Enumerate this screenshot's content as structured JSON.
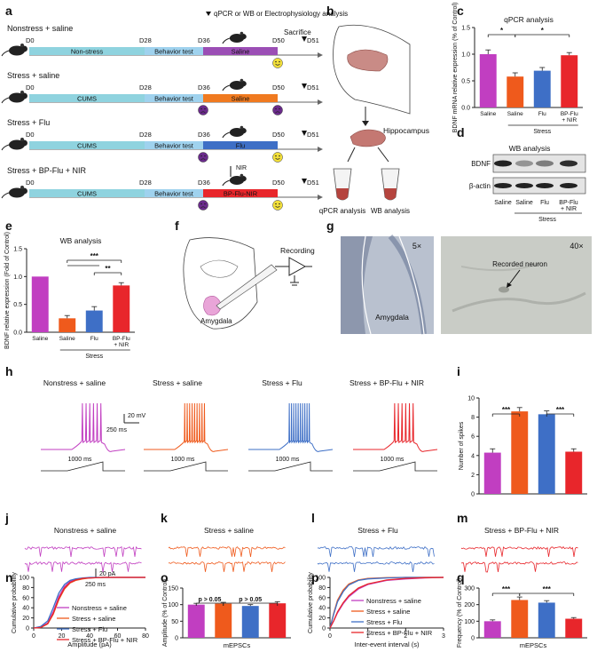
{
  "colors": {
    "saline": "#c13ec1",
    "stress": "#ef5a1c",
    "flu": "#3e6fc6",
    "nir": "#e8262b",
    "cyan": "#8fd3df",
    "lightblue": "#9fd2ee",
    "purple": "#9b4eb5",
    "orange": "#f07a20",
    "blue": "#3e6fc6",
    "red": "#e8262b",
    "smiley": "#f3e03a",
    "sad": "#6b2b8c"
  },
  "panel_letters": [
    "a",
    "b",
    "c",
    "d",
    "e",
    "f",
    "g",
    "h",
    "i",
    "j",
    "k",
    "l",
    "m",
    "n",
    "o",
    "p",
    "q"
  ],
  "panel_a": {
    "top_note": "qPCR or WB or Electrophysiology analysis",
    "sacrifice": "Sacrifice",
    "days": [
      "D0",
      "D28",
      "D36",
      "D50",
      "D51"
    ],
    "groups": [
      {
        "title": "Nonstress + saline",
        "seg1": "Non-stress",
        "seg2": "Behavior test",
        "seg3": "Saline",
        "d36_face": "none",
        "d50_face": "happy",
        "color_key": "saline"
      },
      {
        "title": "Stress + saline",
        "seg1": "CUMS",
        "seg2": "Behavior test",
        "seg3": "Saline",
        "d36_face": "sad",
        "d50_face": "sad",
        "color_key": "stress"
      },
      {
        "title": "Stress + Flu",
        "seg1": "CUMS",
        "seg2": "Behavior test",
        "seg3": "Flu",
        "d36_face": "sad",
        "d50_face": "happy",
        "color_key": "flu"
      },
      {
        "title": "Stress + BP-Flu + NIR",
        "seg1": "CUMS",
        "seg2": "Behavior test",
        "seg3": "BP-Flu-NIR",
        "d36_face": "sad",
        "d50_face": "happy",
        "color_key": "nir"
      }
    ],
    "nir_label": "NIR"
  },
  "panel_b": {
    "hippocampus": "Hippocampus",
    "qpcr": "qPCR analysis",
    "wb": "WB analysis"
  },
  "panel_c": {
    "chart_data": {
      "type": "bar",
      "title": "qPCR analysis",
      "ylabel": "BDNF mRNA relative expression (% of Control)",
      "ylim": [
        0,
        1.5
      ],
      "yticks": [
        "0.0",
        "0.5",
        "1.0",
        "1.5"
      ],
      "categories": [
        "Saline",
        "Saline",
        "Flu",
        "BP-Flu + NIR"
      ],
      "values": [
        1.0,
        0.58,
        0.69,
        0.98
      ],
      "errors": [
        0.08,
        0.07,
        0.06,
        0.05
      ],
      "group_label": "Stress",
      "sig": [
        "*",
        "*"
      ]
    }
  },
  "panel_d": {
    "title": "WB analysis",
    "rows": [
      "BDNF",
      "β-actin"
    ],
    "lanes": [
      "Saline",
      "Saline",
      "Flu",
      "BP-Flu + NIR"
    ],
    "group_label": "Stress"
  },
  "panel_e": {
    "chart_data": {
      "type": "bar",
      "title": "WB analysis",
      "ylabel": "BDNF relative expression (Fold of Control)",
      "ylim": [
        0,
        1.5
      ],
      "yticks": [
        "0.0",
        "0.5",
        "1.0",
        "1.5"
      ],
      "categories": [
        "Saline",
        "Saline",
        "Flu",
        "BP-Flu + NIR"
      ],
      "values": [
        1.0,
        0.25,
        0.39,
        0.84
      ],
      "errors": [
        0.0,
        0.05,
        0.07,
        0.05
      ],
      "group_label": "Stress",
      "sig": [
        "***",
        "**"
      ]
    }
  },
  "panel_f": {
    "recording": "Recording",
    "amygdala": "Amygdala"
  },
  "panel_g": {
    "left_mag": "5×",
    "right_mag": "40×",
    "amygdala": "Amygdala",
    "neuron": "Recorded neuron"
  },
  "panel_h": {
    "titles": [
      "Nonstress + saline",
      "Stress + saline",
      "Stress + Flu",
      "Stress + BP-Flu + NIR"
    ],
    "step": "1000 ms",
    "scale_v": "20 mV",
    "scale_t": "250 ms",
    "spikes": [
      6,
      9,
      10,
      6
    ]
  },
  "panel_i": {
    "chart_data": {
      "type": "bar",
      "ylabel": "Number of spikes",
      "ylim": [
        0,
        10
      ],
      "yticks": [
        "0",
        "2",
        "4",
        "6",
        "8",
        "10"
      ],
      "values": [
        4.3,
        8.6,
        8.3,
        4.4
      ],
      "errors": [
        0.4,
        0.4,
        0.35,
        0.3
      ],
      "sig": [
        "***",
        "***"
      ]
    }
  },
  "panel_jm": {
    "titles": [
      "Nonstress + saline",
      "Stress + saline",
      "Stress + Flu",
      "Stress + BP-Flu + NIR"
    ],
    "scale_a": "20 pA",
    "scale_t": "250 ms"
  },
  "panel_n": {
    "chart_data": {
      "type": "line",
      "xlabel": "Amplitude (pA)",
      "ylabel": "Cumulative probability",
      "xlim": [
        0,
        80
      ],
      "ylim": [
        0,
        100
      ],
      "xticks": [
        "0",
        "20",
        "40",
        "60",
        "80"
      ],
      "yticks": [
        "0",
        "20",
        "40",
        "60",
        "80",
        "100"
      ],
      "x": [
        0,
        5,
        10,
        14,
        18,
        22,
        26,
        30,
        35,
        40,
        50,
        60,
        80
      ],
      "series": [
        {
          "name": "Nonstress + saline",
          "values": [
            0,
            2,
            10,
            32,
            62,
            82,
            92,
            96,
            98,
            99,
            100,
            100,
            100
          ]
        },
        {
          "name": "Stress + saline",
          "values": [
            0,
            1,
            8,
            27,
            56,
            77,
            89,
            94,
            97,
            99,
            100,
            100,
            100
          ]
        },
        {
          "name": "Stress + Flu",
          "values": [
            0,
            3,
            14,
            40,
            69,
            86,
            94,
            97,
            99,
            100,
            100,
            100,
            100
          ]
        },
        {
          "name": "Stress + BP-Flu + NIR",
          "values": [
            0,
            1,
            9,
            29,
            58,
            79,
            90,
            95,
            98,
            99,
            100,
            100,
            100
          ]
        }
      ]
    }
  },
  "panel_o": {
    "chart_data": {
      "type": "bar",
      "xlabel": "mEPSCs",
      "ylabel": "Amplitude (% of Control)",
      "ylim": [
        0,
        150
      ],
      "yticks": [
        "0",
        "50",
        "100",
        "150"
      ],
      "values": [
        100,
        103,
        96,
        104
      ],
      "errors": [
        4,
        4,
        4,
        5
      ],
      "sig": [
        "p > 0.05",
        "p > 0.05"
      ]
    }
  },
  "panel_p": {
    "chart_data": {
      "type": "line",
      "xlabel": "Inter-event interval (s)",
      "ylabel": "Cumulative probability",
      "xlim": [
        0,
        3
      ],
      "ylim": [
        0,
        100
      ],
      "xticks": [
        "0",
        "1",
        "2",
        "3"
      ],
      "yticks": [
        "0",
        "20",
        "40",
        "60",
        "80",
        "100"
      ],
      "x": [
        0,
        0.1,
        0.2,
        0.35,
        0.5,
        0.75,
        1.0,
        1.5,
        2.0,
        2.5,
        3.0
      ],
      "series": [
        {
          "name": "Nonstress + saline",
          "values": [
            0,
            14,
            30,
            48,
            62,
            77,
            86,
            94,
            97,
            99,
            100
          ]
        },
        {
          "name": "Stress + saline",
          "values": [
            0,
            30,
            55,
            75,
            87,
            95,
            98,
            99.5,
            100,
            100,
            100
          ]
        },
        {
          "name": "Stress + Flu",
          "values": [
            0,
            28,
            52,
            72,
            85,
            94,
            97,
            99,
            100,
            100,
            100
          ]
        },
        {
          "name": "Stress + BP-Flu + NIR",
          "values": [
            0,
            15,
            32,
            50,
            64,
            79,
            87,
            95,
            98,
            99.5,
            100
          ]
        }
      ]
    }
  },
  "panel_q": {
    "chart_data": {
      "type": "bar",
      "xlabel": "mEPSCs",
      "ylabel": "Frequency (% of Control)",
      "ylim": [
        0,
        300
      ],
      "yticks": [
        "0",
        "100",
        "200",
        "300"
      ],
      "values": [
        100,
        228,
        212,
        115
      ],
      "errors": [
        8,
        18,
        12,
        7
      ],
      "sig": [
        "***",
        "***"
      ]
    }
  }
}
